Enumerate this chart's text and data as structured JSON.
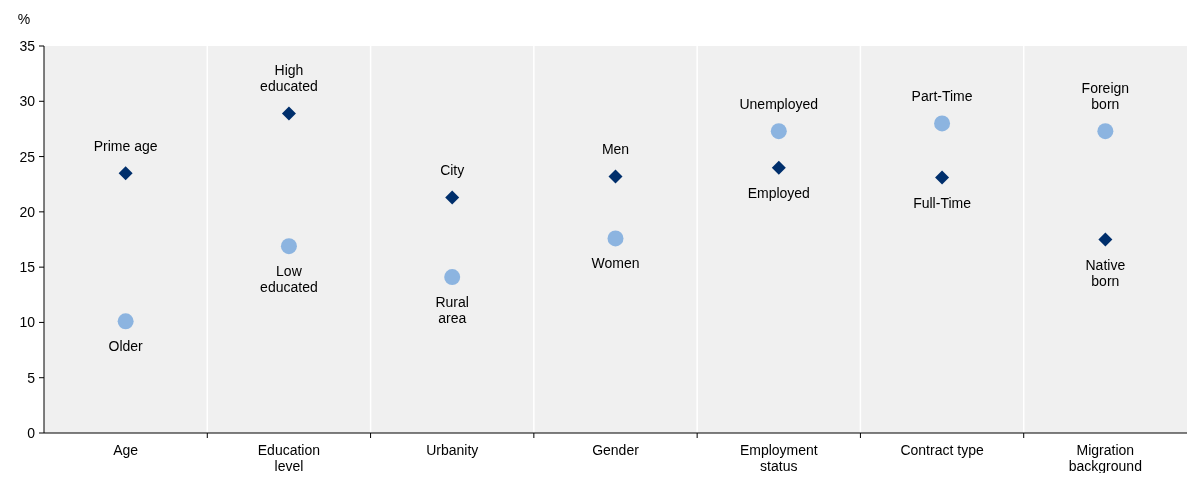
{
  "chart_data": {
    "type": "scatter",
    "ylabel": "%",
    "categories": [
      "Age",
      "Education\nlevel",
      "Urbanity",
      "Gender",
      "Employment\nstatus",
      "Contract type",
      "Migration\nbackground"
    ],
    "series": [
      {
        "color": "#002f6c",
        "marker": "diamond",
        "values": [
          23.5,
          28.9,
          21.3,
          23.2,
          24.0,
          23.1,
          17.5
        ]
      },
      {
        "color": "#8cb4e0",
        "marker": "circle",
        "values": [
          10.1,
          16.9,
          14.1,
          17.6,
          27.3,
          28.0,
          27.3
        ]
      }
    ],
    "annotations": [
      {
        "text": "Prime age",
        "x": "Age",
        "y": 23.5
      },
      {
        "text": "Older",
        "x": "Age",
        "y": 10.1
      },
      {
        "text": "High\neducated",
        "x": "Education\nlevel",
        "y": 28.9
      },
      {
        "text": "Low\neducated",
        "x": "Education\nlevel",
        "y": 16.9
      },
      {
        "text": "City",
        "x": "Urbanity",
        "y": 21.3
      },
      {
        "text": "Rural\narea",
        "x": "Urbanity",
        "y": 14.1
      },
      {
        "text": "Men",
        "x": "Gender",
        "y": 23.2
      },
      {
        "text": "Women",
        "x": "Gender",
        "y": 17.6
      },
      {
        "text": "Employed",
        "x": "Employment\nstatus",
        "y": 24.0
      },
      {
        "text": "Unemployed",
        "x": "Employment\nstatus",
        "y": 27.3
      },
      {
        "text": "Full-Time",
        "x": "Contract type",
        "y": 23.1
      },
      {
        "text": "Part-Time",
        "x": "Contract type",
        "y": 28.0
      },
      {
        "text": "Native\nborn",
        "x": "Migration\nbackground",
        "y": 17.5
      },
      {
        "text": "Foreign\nborn",
        "x": "Migration\nbackground",
        "y": 27.3
      }
    ],
    "ylim": [
      0,
      35
    ],
    "yticks": [
      0,
      5,
      10,
      15,
      20,
      25,
      30,
      35
    ],
    "grid": "x"
  }
}
